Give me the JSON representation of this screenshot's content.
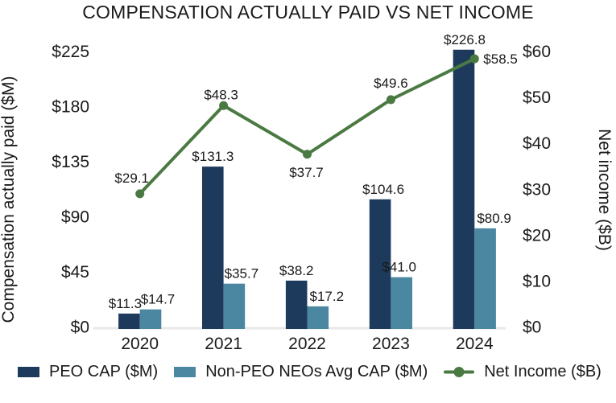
{
  "title": "COMPENSATION ACTUALLY PAID VS NET INCOME",
  "colors": {
    "peo_cap": "#1d3a5c",
    "non_peo_cap": "#4c87a2",
    "net_income": "#4a7a42",
    "axis_line": "#e8e8e6",
    "text": "#1a1a1a",
    "background": "#ffffff"
  },
  "chart_data": {
    "type": "bar+line combo",
    "title": "COMPENSATION ACTUALLY PAID VS NET INCOME",
    "categories": [
      "2020",
      "2021",
      "2022",
      "2023",
      "2024"
    ],
    "series": [
      {
        "name": "PEO CAP ($M)",
        "type": "bar",
        "axis": "left",
        "color_key": "peo_cap",
        "values": [
          11.3,
          131.3,
          38.2,
          104.6,
          226.8
        ],
        "labels": [
          "$11.3",
          "$131.3",
          "$38.2",
          "$104.6",
          "$226.8"
        ]
      },
      {
        "name": "Non-PEO NEOs Avg CAP ($M)",
        "type": "bar",
        "axis": "left",
        "color_key": "non_peo_cap",
        "values": [
          14.7,
          35.7,
          17.2,
          41.0,
          80.9
        ],
        "labels": [
          "$14.7",
          "$35.7",
          "$17.2",
          "$41.0",
          "$80.9"
        ]
      },
      {
        "name": "Net Income ($B)",
        "type": "line",
        "axis": "right",
        "color_key": "net_income",
        "values": [
          29.1,
          48.3,
          37.7,
          49.6,
          58.5
        ],
        "labels": [
          "$29.1",
          "$48.3",
          "$37.7",
          "$49.6",
          "$58.5"
        ]
      }
    ],
    "left_axis": {
      "title": "Compensation actually paid ($M)",
      "tick_labels": [
        "$0",
        "$45",
        "$90",
        "$135",
        "$180",
        "$225"
      ],
      "tick_values": [
        0,
        45,
        90,
        135,
        180,
        225
      ],
      "range": [
        0,
        225
      ]
    },
    "right_axis": {
      "title": "Net income ($B)",
      "tick_labels": [
        "$0",
        "$10",
        "$20",
        "$30",
        "$40",
        "$50",
        "$60"
      ],
      "tick_values": [
        0,
        10,
        20,
        30,
        40,
        50,
        60
      ],
      "range": [
        0,
        60
      ]
    },
    "legend": {
      "position": "bottom",
      "entries": [
        "PEO CAP ($M)",
        "Non-PEO NEOs Avg CAP ($M)",
        "Net Income ($B)"
      ]
    },
    "grid": false
  }
}
